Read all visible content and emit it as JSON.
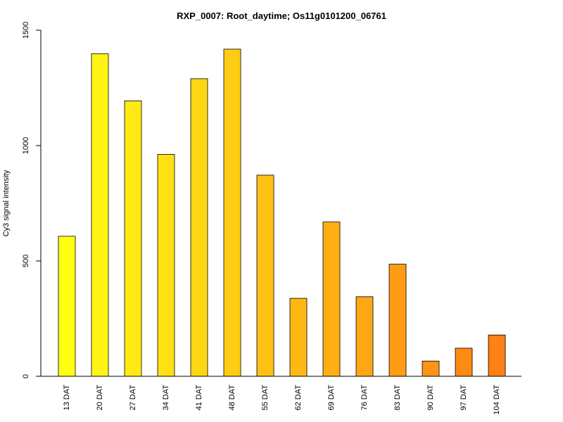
{
  "chart_data": {
    "type": "bar",
    "title": "RXP_0007: Root_daytime; Os11g0101200_06761",
    "xlabel": "",
    "ylabel": "Cy3 signal intensity",
    "ylim": [
      0,
      1500
    ],
    "yticks": [
      0,
      500,
      1000,
      1500
    ],
    "categories": [
      "13 DAT",
      "20 DAT",
      "27 DAT",
      "34 DAT",
      "41 DAT",
      "48 DAT",
      "55 DAT",
      "62 DAT",
      "69 DAT",
      "76 DAT",
      "83 DAT",
      "90 DAT",
      "97 DAT",
      "104 DAT"
    ],
    "values": [
      607,
      1398,
      1194,
      962,
      1290,
      1418,
      872,
      338,
      669,
      345,
      486,
      66,
      122,
      179
    ],
    "colors": [
      "#FFFF14",
      "#FFF414",
      "#FFEA14",
      "#FFE014",
      "#FFD614",
      "#FFCC14",
      "#FFC014",
      "#FFB814",
      "#FFAE14",
      "#FFA614",
      "#FF9C14",
      "#FF9414",
      "#FF8A14",
      "#FF8014"
    ],
    "grid": false,
    "legend": "none"
  }
}
